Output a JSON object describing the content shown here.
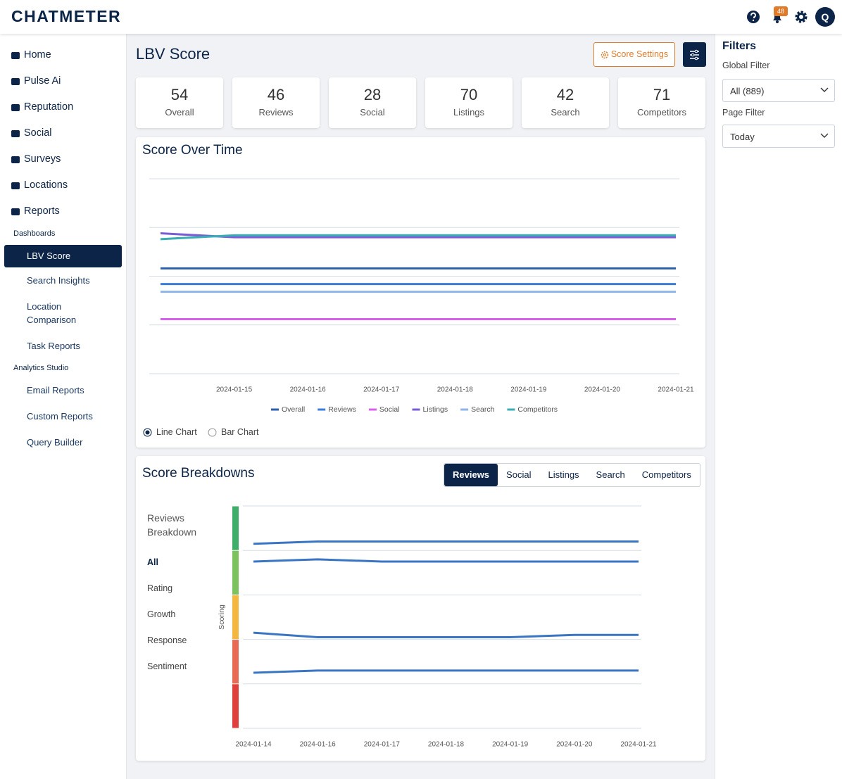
{
  "header": {
    "logo": "CHATMETER",
    "notifications": 48,
    "avatar": "Q"
  },
  "nav": {
    "items": [
      "Home",
      "Pulse Ai",
      "Reputation",
      "Social",
      "Surveys",
      "Locations",
      "Reports"
    ],
    "sections": [
      {
        "title": "Dashboards",
        "items": [
          "LBV Score",
          "Search Insights",
          "Location Comparison",
          "Task Reports"
        ]
      },
      {
        "title": "Analytics Studio",
        "items": [
          "Email Reports",
          "Custom Reports",
          "Query Builder"
        ]
      }
    ]
  },
  "page": {
    "title": "LBV Score",
    "settings_button": "Score Settings"
  },
  "cards": [
    {
      "value": 54,
      "label": "Overall"
    },
    {
      "value": 46,
      "label": "Reviews"
    },
    {
      "value": 28,
      "label": "Social"
    },
    {
      "value": 70,
      "label": "Listings"
    },
    {
      "value": 42,
      "label": "Search"
    },
    {
      "value": 71,
      "label": "Competitors"
    }
  ],
  "score_over_time": {
    "type": "line",
    "title": "Score Over Time",
    "categories": [
      null,
      "2024-01-15",
      "2024-01-16",
      "2024-01-17",
      "2024-01-18",
      "2024-01-19",
      "2024-01-20",
      "2024-01-21"
    ],
    "ylim": [
      0,
      100
    ],
    "yticks": [
      0,
      25,
      50,
      75,
      100
    ],
    "grid": true,
    "series": [
      {
        "name": "Overall",
        "color": "#2f5fa8",
        "values": [
          54,
          54,
          54,
          54,
          54,
          54,
          54,
          54
        ]
      },
      {
        "name": "Reviews",
        "color": "#3b7dd8",
        "values": [
          46,
          46,
          46,
          46,
          46,
          46,
          46,
          46
        ]
      },
      {
        "name": "Social",
        "color": "#d95ff0",
        "values": [
          28,
          28,
          28,
          28,
          28,
          28,
          28,
          28
        ]
      },
      {
        "name": "Listings",
        "color": "#7b5cd6",
        "values": [
          72,
          70,
          70,
          70,
          70,
          70,
          70,
          70
        ]
      },
      {
        "name": "Search",
        "color": "#8fb4ea",
        "values": [
          42,
          42,
          42,
          42,
          42,
          42,
          42,
          42
        ]
      },
      {
        "name": "Competitors",
        "color": "#3aaeb5",
        "values": [
          69,
          71,
          71,
          71,
          71,
          71,
          71,
          71
        ]
      }
    ]
  },
  "chart_views": [
    "Line Chart",
    "Bar Chart"
  ],
  "breakdowns": {
    "title": "Score Breakdowns",
    "tabs": [
      "Reviews",
      "Social",
      "Listings",
      "Search",
      "Competitors"
    ],
    "panel_title": "Reviews Breakdown",
    "options": [
      "All",
      "Rating",
      "Growth",
      "Response",
      "Sentiment"
    ],
    "chart": {
      "type": "line",
      "ylabel": "Scoring",
      "categories": [
        "2024-01-14",
        "2024-01-16",
        "2024-01-17",
        "2024-01-18",
        "2024-01-19",
        "2024-01-20",
        "2024-01-21"
      ],
      "ylim": [
        0,
        100
      ],
      "yticks": [
        0,
        20,
        40,
        60,
        80,
        100
      ],
      "grid": true,
      "band_colors": [
        "#e0403c",
        "#ea6b55",
        "#f3b63f",
        "#7cc35f",
        "#3fae6a"
      ],
      "series": [
        {
          "color": "#3a75c4",
          "values": [
            83,
            84,
            84,
            84,
            84,
            84,
            84
          ]
        },
        {
          "color": "#3a75c4",
          "values": [
            75,
            76,
            75,
            75,
            75,
            75,
            75
          ]
        },
        {
          "color": "#3a75c4",
          "values": [
            43,
            41,
            41,
            41,
            41,
            42,
            42
          ]
        },
        {
          "color": "#3a75c4",
          "values": [
            25,
            26,
            26,
            26,
            26,
            26,
            26
          ]
        }
      ]
    }
  },
  "filters": {
    "title": "Filters",
    "global_label": "Global Filter",
    "global_value": "All (889)",
    "page_label": "Page Filter",
    "page_value": "Today"
  }
}
